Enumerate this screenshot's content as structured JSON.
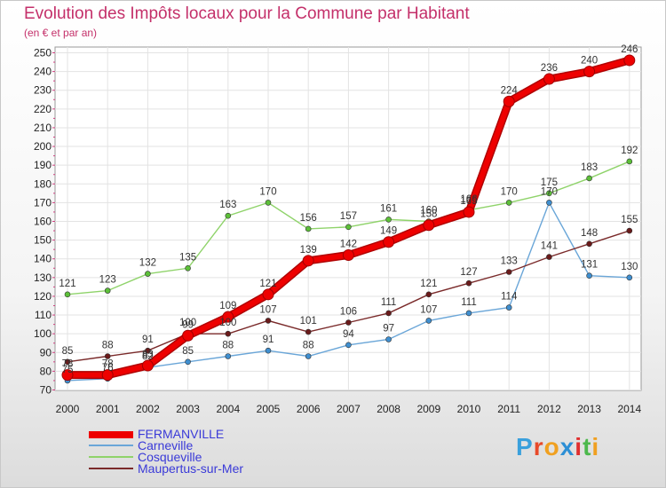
{
  "header": {
    "title": "Evolution des Impôts locaux pour la Commune par Habitant",
    "subtitle": "(en € et par an)"
  },
  "logo": {
    "text": "Proxiti",
    "letters": [
      "P",
      "r",
      "o",
      "x",
      "i",
      "t",
      "i"
    ],
    "colors": [
      "#3aa0dc",
      "#e84a2a",
      "#f0a020",
      "#2d8fd5",
      "#e02f2f",
      "#4cb84c",
      "#f0a020"
    ]
  },
  "chart_data": {
    "type": "line",
    "title": "Evolution des Impôts locaux pour la Commune par Habitant",
    "subtitle": "(en € et par an)",
    "x": [
      "2000",
      "2001",
      "2002",
      "2003",
      "2004",
      "2005",
      "2006",
      "2007",
      "2008",
      "2009",
      "2010",
      "2011",
      "2012",
      "2013",
      "2014"
    ],
    "ylim": [
      70,
      250
    ],
    "yticks": [
      70,
      80,
      90,
      100,
      110,
      120,
      130,
      140,
      150,
      160,
      170,
      180,
      190,
      200,
      210,
      220,
      230,
      240,
      250
    ],
    "grid": true,
    "legend_position": "bottom-left",
    "series": [
      {
        "name": "FERMANVILLE",
        "color": "#ee0000",
        "marker": "#ee0000",
        "emphasis": true,
        "values": [
          78,
          78,
          83,
          99,
          109,
          121,
          139,
          142,
          149,
          158,
          165,
          224,
          236,
          240,
          246
        ],
        "labels": [
          "78",
          "78",
          "83",
          "99",
          "109",
          "121",
          "139",
          "142",
          "149",
          "158",
          "165",
          "224",
          "236",
          "240",
          "246"
        ]
      },
      {
        "name": "Carneville",
        "color": "#6aa6d8",
        "marker": "#3f8fd0",
        "values": [
          75,
          76,
          82,
          85,
          88,
          91,
          88,
          94,
          97,
          107,
          111,
          114,
          170,
          131,
          130
        ],
        "labels": [
          "75",
          "76",
          "82",
          "85",
          "88",
          "91",
          "88",
          "94",
          "97",
          "107",
          "111",
          "114",
          "170",
          "131",
          "130"
        ]
      },
      {
        "name": "Cosqueville",
        "color": "#8fd36a",
        "marker": "#5cc038",
        "values": [
          121,
          123,
          132,
          135,
          163,
          170,
          156,
          157,
          161,
          160,
          166,
          170,
          175,
          183,
          192
        ],
        "labels": [
          "121",
          "123",
          "132",
          "135",
          "163",
          "170",
          "156",
          "157",
          "161",
          "160",
          "166",
          "170",
          "175",
          "183",
          "192"
        ]
      },
      {
        "name": "Maupertus-sur-Mer",
        "color": "#7a2a2a",
        "marker": "#6a1a1a",
        "values": [
          85,
          88,
          91,
          100,
          100,
          107,
          101,
          106,
          111,
          121,
          127,
          133,
          141,
          148,
          155
        ],
        "labels": [
          "85",
          "88",
          "91",
          "100",
          "100",
          "107",
          "101",
          "106",
          "111",
          "121",
          "127",
          "133",
          "141",
          "148",
          "155"
        ]
      }
    ]
  }
}
